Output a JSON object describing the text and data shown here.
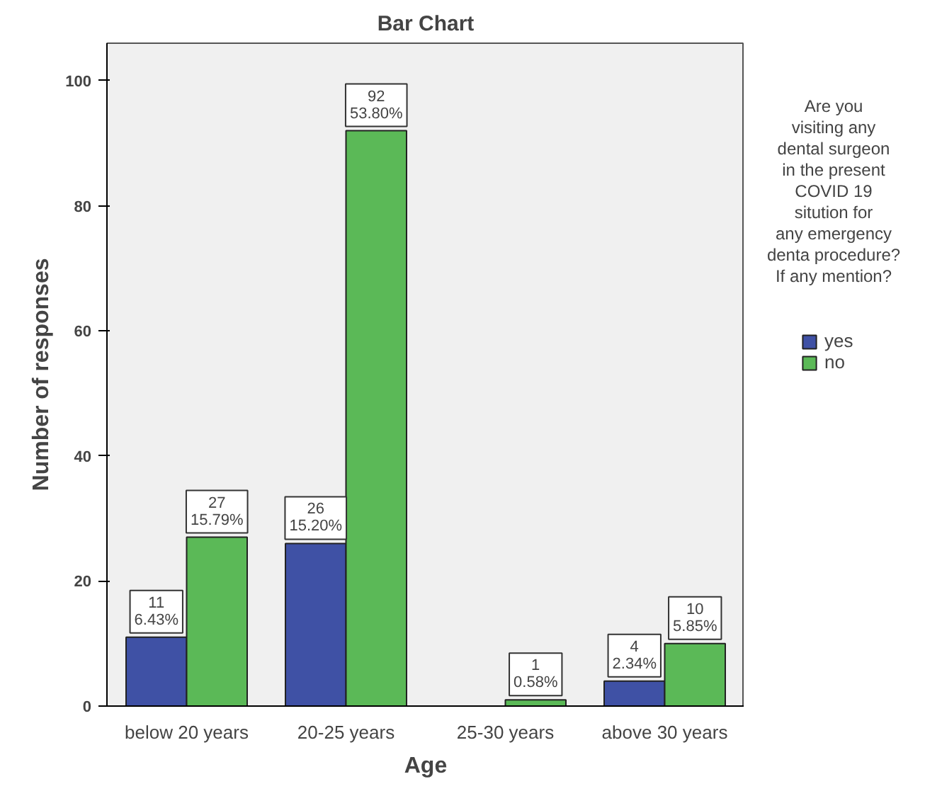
{
  "chart_data": {
    "type": "bar",
    "title": "Bar Chart",
    "xlabel": "Age",
    "ylabel": "Number of responses",
    "legend_title": "Are you\nvisiting any\ndental surgeon\nin the present\nCOVID 19\nsitution for\nany emergency\ndenta procedure?\nIf any mention?",
    "categories": [
      "below 20 years",
      "20-25 years",
      "25-30 years",
      "above 30 years"
    ],
    "series": [
      {
        "name": "yes",
        "color": "#3f51a5",
        "values": [
          11,
          26,
          null,
          4
        ],
        "value_labels": [
          "11\n6.43%",
          "26\n15.20%",
          null,
          "4\n2.34%"
        ]
      },
      {
        "name": "no",
        "color": "#5bb957",
        "values": [
          27,
          92,
          1,
          10
        ],
        "value_labels": [
          "27\n15.79%",
          "92\n53.80%",
          "1\n0.58%",
          "10\n5.85%"
        ]
      }
    ],
    "ylim": [
      0,
      106
    ],
    "yticks": [
      0,
      20,
      40,
      60,
      80,
      100
    ],
    "grid": false,
    "legend": "right"
  }
}
